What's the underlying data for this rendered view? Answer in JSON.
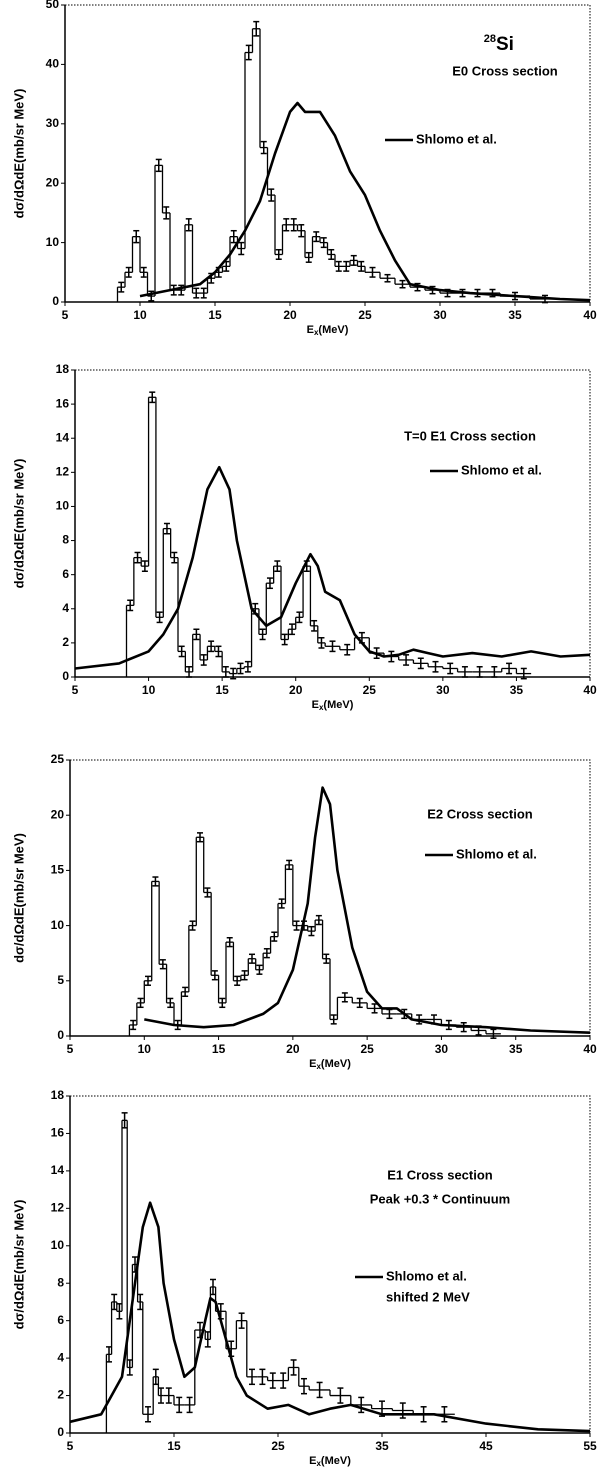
{
  "chart_data": [
    {
      "type": "line",
      "isotope_mass_number": "28",
      "isotope": "Si",
      "title": "E0 Cross section",
      "xlabel": {
        "main": "E",
        "sub": "x",
        "rest": "(MeV)"
      },
      "ylabel": "dσ/dΩdE(mb/sr MeV)",
      "xlim": [
        5,
        40
      ],
      "xticks": [
        5,
        10,
        15,
        20,
        25,
        30,
        35,
        40
      ],
      "ylim": [
        0,
        50
      ],
      "yticks": [
        0,
        10,
        20,
        30,
        40,
        50
      ],
      "series": [
        {
          "name": "Shlomo et al.",
          "color": "#000",
          "kind": "line",
          "x": [
            10,
            12,
            14,
            15,
            16,
            17,
            18,
            19,
            20,
            20.5,
            21,
            22,
            23,
            24,
            25,
            26,
            27,
            28,
            30,
            32,
            35,
            38,
            40
          ],
          "values": [
            1,
            2,
            3,
            5,
            8,
            12,
            17,
            25,
            32,
            33.5,
            32,
            32,
            28,
            22,
            18,
            12,
            7,
            3,
            2,
            1.5,
            1,
            0.5,
            0.3
          ]
        },
        {
          "color": "#000",
          "kind": "step",
          "x": [
            8.5,
            9,
            9.5,
            10,
            10.5,
            11,
            11.5,
            12,
            12.5,
            13,
            13.5,
            14,
            14.5,
            15,
            15.5,
            16,
            16.5,
            17,
            17.5,
            18,
            18.5,
            19,
            19.5,
            20,
            20.5,
            21,
            21.5,
            22,
            22.5,
            23,
            23.5,
            24,
            24.5,
            25,
            26,
            27,
            28,
            29,
            30,
            31,
            32,
            33,
            34,
            36
          ],
          "values": [
            2.5,
            5,
            11,
            5,
            1,
            23,
            15,
            2,
            2,
            13,
            1.5,
            1.5,
            4,
            5,
            6,
            11,
            9,
            42,
            46,
            26,
            18,
            8,
            13,
            13,
            12,
            7.5,
            11,
            10,
            8,
            6,
            6,
            7,
            6,
            5,
            4,
            3,
            2.5,
            2,
            1.5,
            1.5,
            1.5,
            1.5,
            1,
            0.5
          ],
          "errors": [
            0.8,
            0.8,
            1,
            0.8,
            0.8,
            1,
            1,
            0.8,
            0.8,
            1,
            0.8,
            0.8,
            0.8,
            0.8,
            0.8,
            1,
            1,
            1.2,
            1.2,
            1,
            1,
            0.8,
            1,
            1,
            1,
            0.8,
            0.8,
            0.8,
            0.8,
            0.8,
            0.8,
            0.8,
            0.8,
            0.8,
            0.6,
            0.6,
            0.6,
            0.6,
            0.6,
            0.6,
            0.6,
            0.6,
            0.6,
            0.6
          ]
        }
      ]
    },
    {
      "type": "line",
      "title": "T=0 E1 Cross section",
      "xlabel": {
        "main": "E",
        "sub": "x",
        "rest": "(MeV)"
      },
      "ylabel": "dσ/dΩdE(mb/sr MeV)",
      "xlim": [
        5,
        40
      ],
      "xticks": [
        5,
        10,
        15,
        20,
        25,
        30,
        35,
        40
      ],
      "ylim": [
        0,
        18
      ],
      "yticks": [
        0,
        2,
        4,
        6,
        8,
        10,
        12,
        14,
        16,
        18
      ],
      "series": [
        {
          "name": "Shlomo et al.",
          "color": "#000",
          "kind": "line",
          "x": [
            5,
            8,
            10,
            11,
            12,
            13,
            14,
            14.8,
            15.5,
            16,
            17,
            18,
            19,
            20,
            21,
            21.5,
            22,
            23,
            24,
            25,
            26,
            27,
            28,
            29,
            30,
            32,
            34,
            36,
            38,
            40
          ],
          "values": [
            0.5,
            0.8,
            1.5,
            2.5,
            4,
            7,
            11,
            12.3,
            11,
            8,
            4,
            3,
            3.5,
            5.5,
            7.2,
            6.5,
            5,
            4.5,
            2.5,
            1.5,
            1.2,
            1.3,
            1.6,
            1.4,
            1.2,
            1.4,
            1.2,
            1.5,
            1.2,
            1.3
          ]
        },
        {
          "color": "#000",
          "kind": "step",
          "x": [
            8.5,
            9,
            9.5,
            10,
            10.5,
            11,
            11.5,
            12,
            12.5,
            13,
            13.5,
            14,
            14.5,
            15,
            15.5,
            16,
            16.5,
            17,
            17.5,
            18,
            18.5,
            19,
            19.5,
            20,
            20.5,
            21,
            21.5,
            22,
            23,
            24,
            25,
            26,
            27,
            28,
            29,
            30,
            31,
            32,
            33,
            34,
            35
          ],
          "values": [
            4.2,
            7,
            6.5,
            16.4,
            3.5,
            8.7,
            7,
            1.5,
            0.3,
            2.5,
            1,
            1.8,
            1.5,
            0.3,
            0.2,
            0.5,
            0.6,
            4,
            2.5,
            5.5,
            6.5,
            2.2,
            2.8,
            3.5,
            6.5,
            3,
            2,
            1.8,
            1.6,
            2.3,
            1.4,
            1.2,
            1,
            0.8,
            0.6,
            0.5,
            0.3,
            0.3,
            0.3,
            0.5,
            0.2
          ],
          "errors": [
            0.3,
            0.3,
            0.3,
            0.3,
            0.3,
            0.3,
            0.3,
            0.3,
            0.3,
            0.3,
            0.3,
            0.3,
            0.3,
            0.3,
            0.3,
            0.3,
            0.3,
            0.3,
            0.3,
            0.3,
            0.3,
            0.3,
            0.3,
            0.3,
            0.3,
            0.3,
            0.3,
            0.3,
            0.3,
            0.3,
            0.3,
            0.3,
            0.3,
            0.3,
            0.3,
            0.3,
            0.3,
            0.3,
            0.3,
            0.3,
            0.3
          ]
        }
      ]
    },
    {
      "type": "line",
      "title": "E2 Cross section",
      "xlabel": {
        "main": "E",
        "sub": "x",
        "rest": "(MeV)"
      },
      "ylabel": "dσ/dΩdE(mb/sr MeV)",
      "xlim": [
        5,
        40
      ],
      "xticks": [
        5,
        10,
        15,
        20,
        25,
        30,
        35,
        40
      ],
      "ylim": [
        0,
        25
      ],
      "yticks": [
        0,
        5,
        10,
        15,
        20,
        25
      ],
      "series": [
        {
          "name": "Shlomo et al.",
          "color": "#000",
          "kind": "line",
          "x": [
            10,
            12,
            14,
            16,
            18,
            19,
            20,
            21,
            21.5,
            22,
            22.5,
            23,
            24,
            25,
            26,
            27,
            28,
            30,
            33,
            36,
            40
          ],
          "values": [
            1.5,
            1,
            0.8,
            1,
            2,
            3,
            6,
            12,
            18,
            22.5,
            21,
            15,
            8,
            4,
            2.5,
            2.5,
            1.5,
            1,
            0.8,
            0.5,
            0.3
          ]
        },
        {
          "color": "#000",
          "kind": "step",
          "x": [
            9,
            9.5,
            10,
            10.5,
            11,
            11.5,
            12,
            12.5,
            13,
            13.5,
            14,
            14.5,
            15,
            15.5,
            16,
            16.5,
            17,
            17.5,
            18,
            18.5,
            19,
            19.5,
            20,
            20.5,
            21,
            21.5,
            22,
            22.5,
            23,
            24,
            25,
            26,
            27,
            28,
            29,
            30,
            31,
            32,
            33
          ],
          "values": [
            1,
            3,
            5,
            14,
            6.5,
            3,
            1,
            4,
            10,
            18,
            13,
            5.5,
            3,
            8.5,
            5,
            5.5,
            7,
            6,
            7.5,
            9,
            12,
            15.5,
            10,
            10,
            9.5,
            10.5,
            7,
            1.5,
            3.5,
            3,
            2.5,
            2,
            2,
            1.5,
            1.5,
            1,
            0.8,
            0.5,
            0.2
          ],
          "errors": [
            0.4,
            0.4,
            0.4,
            0.4,
            0.4,
            0.4,
            0.4,
            0.4,
            0.4,
            0.4,
            0.4,
            0.4,
            0.4,
            0.4,
            0.4,
            0.4,
            0.4,
            0.4,
            0.4,
            0.4,
            0.4,
            0.4,
            0.4,
            0.4,
            0.4,
            0.4,
            0.4,
            0.4,
            0.4,
            0.4,
            0.4,
            0.4,
            0.4,
            0.4,
            0.4,
            0.4,
            0.4,
            0.4,
            0.4
          ]
        }
      ]
    },
    {
      "type": "line",
      "title": "E1 Cross section",
      "subtitle": "Peak +0.3 * Continuum",
      "legend_note": "shifted 2 MeV",
      "xlabel": {
        "main": "E",
        "sub": "x",
        "rest": "(MeV)"
      },
      "ylabel": "dσ/dΩdE(mb/sr MeV)",
      "xlim": [
        5,
        55
      ],
      "xticks": [
        5,
        15,
        25,
        35,
        45,
        55
      ],
      "ylim": [
        0,
        18
      ],
      "yticks": [
        0,
        2,
        4,
        6,
        8,
        10,
        12,
        14,
        16,
        18
      ],
      "series": [
        {
          "name": "Shlomo et al.",
          "color": "#000",
          "kind": "line",
          "x": [
            5,
            8,
            10,
            11,
            12,
            12.7,
            13.5,
            14,
            15,
            16,
            17,
            18,
            18.5,
            19,
            20,
            21,
            22,
            24,
            26,
            28,
            30,
            32,
            35,
            40,
            45,
            50,
            55
          ],
          "values": [
            0.6,
            1,
            3,
            7,
            11,
            12.3,
            11,
            8,
            5,
            3,
            3.5,
            6,
            7.2,
            7,
            5,
            3,
            2,
            1.3,
            1.5,
            1,
            1.3,
            1.5,
            1,
            1,
            0.5,
            0.2,
            0.1
          ]
        },
        {
          "color": "#000",
          "kind": "step",
          "x": [
            8.5,
            9,
            9.5,
            10,
            10.5,
            11,
            11.5,
            12,
            13,
            13.5,
            14,
            15,
            16,
            17,
            18,
            18.5,
            19,
            20,
            21,
            22,
            23,
            24,
            25,
            26,
            27,
            28,
            30,
            32,
            34,
            36,
            38,
            40
          ],
          "values": [
            4.2,
            7,
            6.5,
            16.7,
            3.5,
            9,
            7,
            1,
            3,
            2,
            2,
            1.5,
            1.5,
            5.5,
            5,
            7.8,
            6.5,
            4.5,
            6,
            3,
            3,
            2.8,
            2.8,
            3.5,
            2.5,
            2.3,
            2,
            1.5,
            1.3,
            1.2,
            1,
            1
          ],
          "errors": [
            0.4,
            0.4,
            0.4,
            0.4,
            0.4,
            0.4,
            0.4,
            0.4,
            0.4,
            0.4,
            0.4,
            0.4,
            0.4,
            0.4,
            0.4,
            0.4,
            0.4,
            0.4,
            0.4,
            0.4,
            0.4,
            0.4,
            0.4,
            0.4,
            0.4,
            0.4,
            0.4,
            0.4,
            0.4,
            0.4,
            0.4,
            0.4
          ]
        }
      ]
    }
  ]
}
